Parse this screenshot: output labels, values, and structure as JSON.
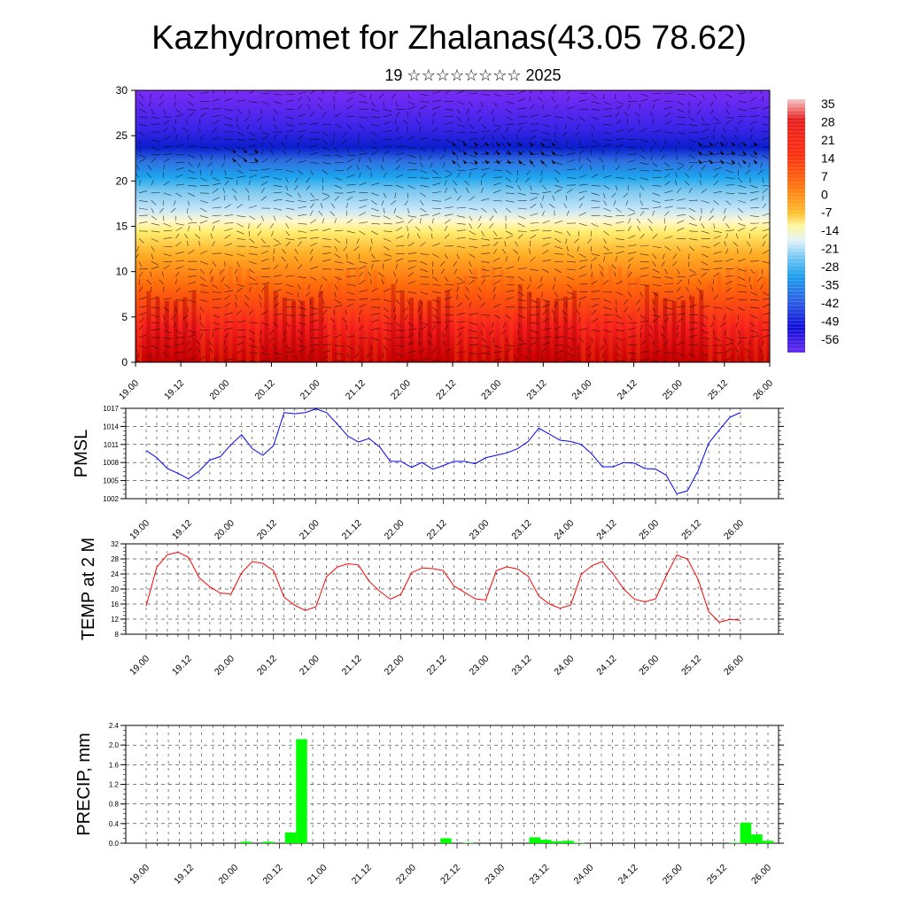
{
  "title": "Kazhydromet for Zhalanas(43.05 78.62)",
  "subtitle": "19 ☆☆☆☆☆☆☆☆ 2025",
  "x_tick_labels": [
    "19.00",
    "19.12",
    "20.00",
    "20.12",
    "21.00",
    "21.12",
    "22.00",
    "22.12",
    "23.00",
    "23.12",
    "24.00",
    "24.12",
    "25.00",
    "25.12",
    "26.00"
  ],
  "colors": {
    "pmsl_line": "#0000ff",
    "temp_line": "#ff0000",
    "precip_bar": "#00ff00"
  },
  "chart_data": [
    {
      "type": "heatmap",
      "name": "cross-section",
      "ylim": [
        0,
        30
      ],
      "y_ticks": [
        0,
        5,
        10,
        15,
        20,
        25,
        30
      ],
      "colorbar_labels": [
        "35",
        "28",
        "21",
        "14",
        "7",
        "0",
        "-7",
        "-14",
        "-21",
        "-28",
        "-35",
        "-42",
        "-49",
        "-56"
      ],
      "value_range": [
        -60,
        38
      ],
      "overlay": "wind barbs"
    },
    {
      "type": "line",
      "ylabel": "PMSL",
      "ylim": [
        1002,
        1017
      ],
      "y_ticks": [
        1002,
        1005,
        1008,
        1011,
        1014,
        1017
      ],
      "x": [
        0,
        1,
        2,
        3,
        4,
        5,
        6,
        7,
        8,
        9,
        10,
        11,
        12,
        13,
        14,
        15,
        16,
        17,
        18,
        19,
        20,
        21,
        22,
        23,
        24,
        25,
        26,
        27,
        28,
        29,
        30,
        31,
        32,
        33,
        34,
        35,
        36,
        37,
        38,
        39,
        40,
        41,
        42,
        43,
        44,
        45,
        46,
        47,
        48,
        49,
        50,
        51,
        52,
        53,
        54,
        55,
        56
      ],
      "values": [
        1010.0,
        1008.8,
        1007.0,
        1006.2,
        1005.3,
        1006.6,
        1008.4,
        1009.0,
        1011.0,
        1012.6,
        1010.3,
        1009.2,
        1010.8,
        1016.3,
        1016.1,
        1016.3,
        1016.9,
        1016.3,
        1014.4,
        1012.4,
        1011.4,
        1012.0,
        1010.6,
        1008.2,
        1008.2,
        1007.2,
        1008.0,
        1006.9,
        1007.5,
        1008.2,
        1008.2,
        1007.8,
        1008.8,
        1009.2,
        1009.6,
        1010.3,
        1011.5,
        1013.7,
        1012.7,
        1011.7,
        1011.5,
        1011.0,
        1009.4,
        1007.3,
        1007.3,
        1008.0,
        1007.9,
        1007.0,
        1006.9,
        1005.9,
        1002.8,
        1003.3,
        1006.6,
        1011.2,
        1013.4,
        1015.5,
        1016.3
      ]
    },
    {
      "type": "line",
      "ylabel": "TEMP at 2 M",
      "ylim": [
        8,
        32
      ],
      "y_ticks": [
        8,
        12,
        16,
        20,
        24,
        28,
        32
      ],
      "x": [
        0,
        1,
        2,
        3,
        4,
        5,
        6,
        7,
        8,
        9,
        10,
        11,
        12,
        13,
        14,
        15,
        16,
        17,
        18,
        19,
        20,
        21,
        22,
        23,
        24,
        25,
        26,
        27,
        28,
        29,
        30,
        31,
        32,
        33,
        34,
        35,
        36,
        37,
        38,
        39,
        40,
        41,
        42,
        43,
        44,
        45,
        46,
        47,
        48,
        49,
        50,
        51,
        52,
        53,
        54,
        55,
        56
      ],
      "values": [
        15.5,
        25.8,
        29.1,
        29.8,
        28.4,
        23.0,
        20.6,
        18.9,
        18.7,
        24.3,
        27.3,
        26.8,
        24.9,
        17.8,
        15.7,
        14.3,
        15.3,
        23.3,
        25.8,
        26.7,
        26.4,
        22.1,
        19.4,
        17.3,
        18.6,
        24.3,
        25.6,
        25.4,
        24.9,
        20.8,
        19.1,
        17.4,
        17.1,
        24.9,
        25.9,
        25.3,
        23.4,
        18.1,
        16.0,
        14.9,
        15.7,
        23.9,
        26.2,
        27.3,
        24.0,
        20.0,
        17.3,
        16.6,
        17.4,
        23.5,
        29.0,
        28.0,
        22.6,
        14.0,
        11.2,
        11.9,
        11.7
      ]
    },
    {
      "type": "bar",
      "ylabel": "PRECIP, mm",
      "ylim": [
        0,
        2.4
      ],
      "y_ticks": [
        "0.0",
        "0.4",
        "0.8",
        "1.2",
        "1.6",
        "2.0",
        "2.4"
      ],
      "x": [
        9,
        11,
        13,
        14,
        27,
        29,
        35,
        36,
        37,
        38,
        39,
        53,
        54,
        55,
        56
      ],
      "values": [
        0.03,
        0.03,
        0.22,
        2.12,
        0.1,
        0.01,
        0.12,
        0.07,
        0.04,
        0.05,
        0.01,
        0.01,
        0.42,
        0.18,
        0.05
      ]
    }
  ]
}
